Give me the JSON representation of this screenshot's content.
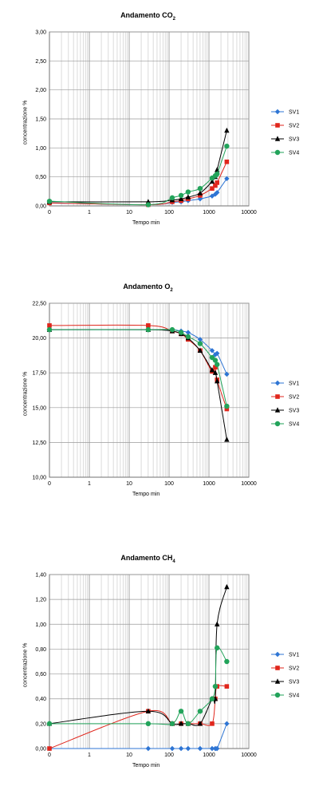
{
  "chart_data": [
    {
      "type": "scatter",
      "title_main": "Andamento CO",
      "title_sub": "2",
      "xlabel": "Tempo min",
      "ylabel": "concentrazione %",
      "x_scale": "log",
      "x_ticks": [
        "0",
        "1",
        "10",
        "100",
        "1000",
        "10000"
      ],
      "ylim": [
        0,
        3
      ],
      "y_ticks": [
        "0,00",
        "0,50",
        "1,00",
        "1,50",
        "2,00",
        "2,50",
        "3,00"
      ],
      "grid": true,
      "legend_position": "right",
      "series": [
        {
          "name": "SV1",
          "color": "#2e75d4",
          "marker": "diamond",
          "x": [
            0.1,
            30,
            120,
            200,
            300,
            600,
            1200,
            1440,
            1600,
            2800
          ],
          "y": [
            0.05,
            0.02,
            0.06,
            0.07,
            0.09,
            0.12,
            0.17,
            0.2,
            0.23,
            0.47
          ]
        },
        {
          "name": "SV2",
          "color": "#e0261c",
          "marker": "square",
          "x": [
            0.1,
            30,
            120,
            200,
            300,
            600,
            1200,
            1440,
            1600,
            2800
          ],
          "y": [
            0.05,
            0.02,
            0.07,
            0.09,
            0.12,
            0.18,
            0.3,
            0.35,
            0.4,
            0.76
          ]
        },
        {
          "name": "SV3",
          "color": "#000000",
          "marker": "triangle",
          "x": [
            0.1,
            30,
            120,
            200,
            300,
            600,
            1200,
            1440,
            1600,
            2800
          ],
          "y": [
            0.07,
            0.07,
            0.1,
            0.12,
            0.15,
            0.22,
            0.42,
            0.5,
            0.62,
            1.3
          ]
        },
        {
          "name": "SV4",
          "color": "#22a35a",
          "marker": "circle",
          "x": [
            0.1,
            30,
            120,
            200,
            300,
            600,
            1200,
            1440,
            1600,
            2800
          ],
          "y": [
            0.08,
            0.02,
            0.14,
            0.18,
            0.24,
            0.3,
            0.48,
            0.52,
            0.55,
            1.03
          ]
        }
      ]
    },
    {
      "type": "scatter",
      "title_main": "Andamento O",
      "title_sub": "2",
      "xlabel": "Tempo min",
      "ylabel": "concentrazione %",
      "x_scale": "log",
      "x_ticks": [
        "0",
        "1",
        "10",
        "100",
        "1000",
        "10000"
      ],
      "ylim": [
        10,
        22.5
      ],
      "y_ticks": [
        "10,00",
        "12,50",
        "15,00",
        "17,50",
        "20,00",
        "22,50"
      ],
      "grid": true,
      "legend_position": "right",
      "series": [
        {
          "name": "SV1",
          "color": "#2e75d4",
          "marker": "diamond",
          "x": [
            0.1,
            30,
            120,
            200,
            300,
            600,
            1200,
            1440,
            1600,
            2800
          ],
          "y": [
            20.6,
            20.6,
            20.6,
            20.5,
            20.4,
            19.9,
            19.1,
            18.8,
            18.9,
            17.4
          ]
        },
        {
          "name": "SV2",
          "color": "#e0261c",
          "marker": "square",
          "x": [
            0.1,
            30,
            120,
            200,
            300,
            600,
            1200,
            1440,
            1600,
            2800
          ],
          "y": [
            20.9,
            20.9,
            20.5,
            20.3,
            19.9,
            19.1,
            17.6,
            17.9,
            17.0,
            14.9
          ]
        },
        {
          "name": "SV3",
          "color": "#000000",
          "marker": "triangle",
          "x": [
            0.1,
            30,
            120,
            200,
            300,
            600,
            1200,
            1440,
            1600,
            2800
          ],
          "y": [
            20.6,
            20.6,
            20.5,
            20.3,
            20.0,
            19.1,
            17.7,
            17.5,
            16.9,
            12.7
          ]
        },
        {
          "name": "SV4",
          "color": "#22a35a",
          "marker": "circle",
          "x": [
            0.1,
            30,
            120,
            200,
            300,
            600,
            1200,
            1440,
            1600,
            2800
          ],
          "y": [
            20.6,
            20.6,
            20.6,
            20.4,
            20.1,
            19.6,
            18.6,
            18.4,
            18.1,
            15.1
          ]
        }
      ]
    },
    {
      "type": "scatter",
      "title_main": "Andamento CH",
      "title_sub": "4",
      "xlabel": "Tempo min",
      "ylabel": "concentrazione %",
      "x_scale": "log",
      "x_ticks": [
        "0",
        "1",
        "10",
        "100",
        "1000",
        "10000"
      ],
      "ylim": [
        0,
        1.4
      ],
      "y_ticks": [
        "0,00",
        "0,20",
        "0,40",
        "0,60",
        "0,80",
        "1,00",
        "1,20",
        "1,40"
      ],
      "grid": true,
      "legend_position": "right",
      "series": [
        {
          "name": "SV1",
          "color": "#2e75d4",
          "marker": "diamond",
          "x": [
            0.1,
            30,
            120,
            200,
            300,
            600,
            1200,
            1440,
            1600,
            2800
          ],
          "y": [
            0,
            0,
            0,
            0,
            0,
            0,
            0,
            0,
            0,
            0.2
          ]
        },
        {
          "name": "SV2",
          "color": "#e0261c",
          "marker": "square",
          "x": [
            0.1,
            30,
            120,
            200,
            300,
            600,
            1200,
            1440,
            1600,
            2800
          ],
          "y": [
            0,
            0.3,
            0.2,
            0.2,
            0.2,
            0.2,
            0.2,
            0.4,
            0.5,
            0.5
          ]
        },
        {
          "name": "SV3",
          "color": "#000000",
          "marker": "triangle",
          "x": [
            0.1,
            30,
            120,
            200,
            300,
            600,
            1200,
            1440,
            1600,
            2800
          ],
          "y": [
            0.2,
            0.3,
            0.2,
            0.2,
            0.2,
            0.2,
            0.4,
            0.4,
            1.0,
            1.3
          ]
        },
        {
          "name": "SV4",
          "color": "#22a35a",
          "marker": "circle",
          "x": [
            0.1,
            30,
            120,
            200,
            300,
            600,
            1200,
            1440,
            1600,
            2800
          ],
          "y": [
            0.2,
            0.2,
            0.2,
            0.3,
            0.2,
            0.3,
            0.4,
            0.5,
            0.81,
            0.7
          ]
        }
      ]
    }
  ]
}
